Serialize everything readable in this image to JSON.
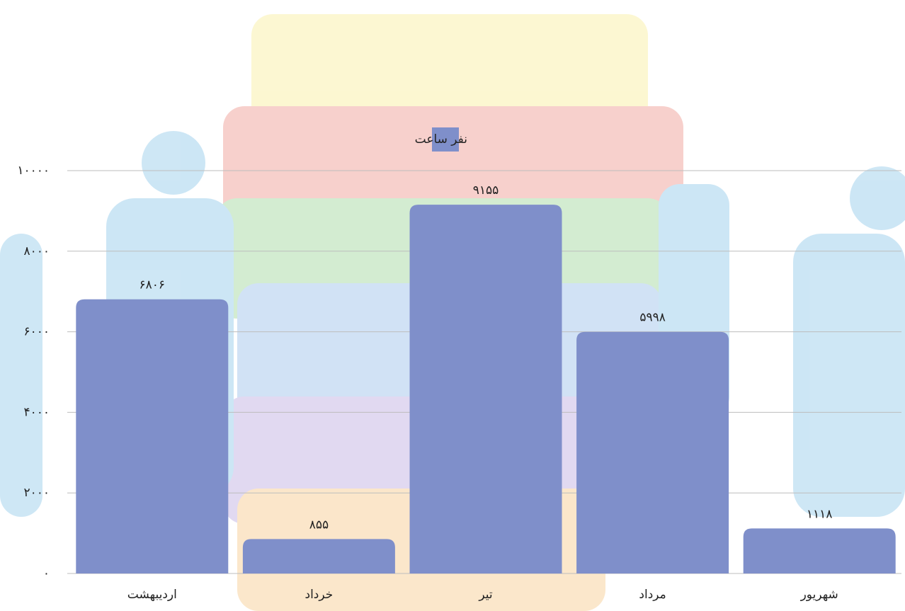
{
  "chart_data": {
    "type": "bar",
    "categories": [
      "اردیبهشت",
      "خرداد",
      "تیر",
      "مرداد",
      "شهریور"
    ],
    "series": [
      {
        "name": "نفر ساعت",
        "color": "#7f8fca",
        "values": [
          6806,
          855,
          9155,
          5998,
          1118
        ],
        "value_labels": [
          "۶۸۰۶",
          "۸۵۵",
          "۹۱۵۵",
          "۵۹۹۸",
          "۱۱۱۸"
        ]
      }
    ],
    "ylim": [
      0,
      10000
    ],
    "yticks": [
      {
        "value": 0,
        "label": "۰"
      },
      {
        "value": 2000,
        "label": "۲۰۰۰"
      },
      {
        "value": 4000,
        "label": "۴۰۰۰"
      },
      {
        "value": 6000,
        "label": "۶۰۰۰"
      },
      {
        "value": 8000,
        "label": "۸۰۰۰"
      },
      {
        "value": 10000,
        "label": "۱۰۰۰۰"
      }
    ],
    "grid": true,
    "legend": "top"
  }
}
